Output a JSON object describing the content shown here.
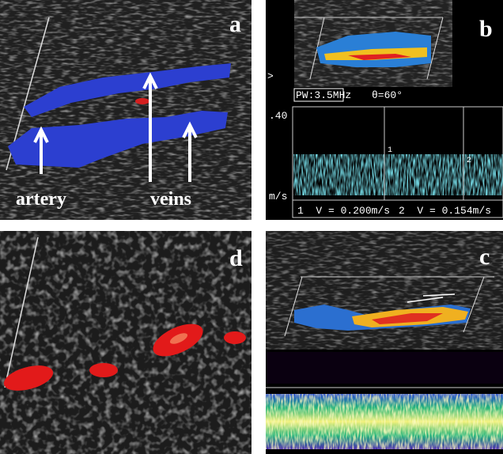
{
  "panels": {
    "a": {
      "label": "a",
      "annotations": [
        "artery",
        "veins"
      ]
    },
    "b": {
      "label": "b",
      "probe": "PW:3.5MHz",
      "angle": "θ=60°",
      "scale_top": ".40",
      "unit": "m/s",
      "markers": [
        "1",
        "2"
      ],
      "readouts": [
        "1  V = 0.200m/s",
        "2  V = 0.154m/s"
      ]
    },
    "d": {
      "label": "d"
    },
    "c": {
      "label": "c"
    }
  }
}
